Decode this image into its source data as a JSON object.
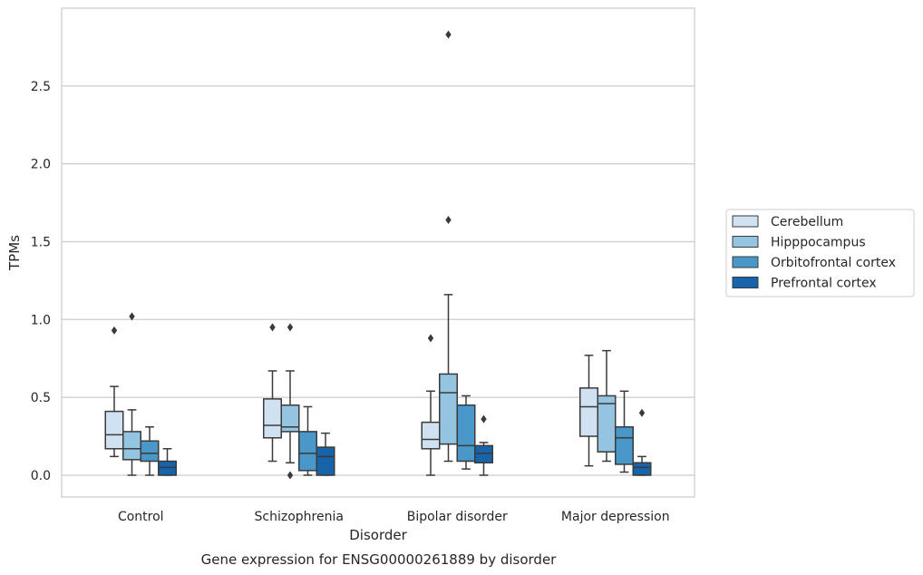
{
  "chart_data": {
    "type": "box",
    "xlabel": "Disorder",
    "ylabel": "TPMs",
    "caption": "Gene expression for ENSG00000261889 by disorder",
    "ylim": [
      -0.14,
      3.0
    ],
    "yticks": [
      0.0,
      0.5,
      1.0,
      1.5,
      2.0,
      2.5
    ],
    "ytick_labels": [
      "0.0",
      "0.5",
      "1.0",
      "1.5",
      "2.0",
      "2.5"
    ],
    "grid": "horizontal",
    "legend_position": "right",
    "categories": [
      "Control",
      "Schizophrenia",
      "Bipolar disorder",
      "Major depression"
    ],
    "series": [
      {
        "name": "Cerebellum",
        "color": "#d0e1f2",
        "boxes": [
          {
            "whislo": 0.12,
            "q1": 0.17,
            "med": 0.26,
            "q3": 0.41,
            "whishi": 0.57,
            "fliers": [
              0.93
            ]
          },
          {
            "whislo": 0.09,
            "q1": 0.24,
            "med": 0.32,
            "q3": 0.49,
            "whishi": 0.67,
            "fliers": [
              0.95
            ]
          },
          {
            "whislo": 0.0,
            "q1": 0.17,
            "med": 0.23,
            "q3": 0.34,
            "whishi": 0.54,
            "fliers": [
              0.88
            ]
          },
          {
            "whislo": 0.06,
            "q1": 0.25,
            "med": 0.44,
            "q3": 0.56,
            "whishi": 0.77,
            "fliers": []
          }
        ]
      },
      {
        "name": "Hipppocampus",
        "color": "#94c4df",
        "boxes": [
          {
            "whislo": 0.0,
            "q1": 0.1,
            "med": 0.17,
            "q3": 0.28,
            "whishi": 0.42,
            "fliers": [
              1.02
            ]
          },
          {
            "whislo": 0.08,
            "q1": 0.28,
            "med": 0.31,
            "q3": 0.45,
            "whishi": 0.67,
            "fliers": [
              0.95,
              0.0
            ]
          },
          {
            "whislo": 0.09,
            "q1": 0.2,
            "med": 0.53,
            "q3": 0.65,
            "whishi": 1.16,
            "fliers": [
              1.64,
              2.83
            ]
          },
          {
            "whislo": 0.09,
            "q1": 0.15,
            "med": 0.46,
            "q3": 0.51,
            "whishi": 0.8,
            "fliers": []
          }
        ]
      },
      {
        "name": "Orbitofrontal cortex",
        "color": "#4a98c9",
        "boxes": [
          {
            "whislo": 0.0,
            "q1": 0.09,
            "med": 0.14,
            "q3": 0.22,
            "whishi": 0.31,
            "fliers": []
          },
          {
            "whislo": 0.0,
            "q1": 0.03,
            "med": 0.14,
            "q3": 0.28,
            "whishi": 0.44,
            "fliers": []
          },
          {
            "whislo": 0.04,
            "q1": 0.09,
            "med": 0.19,
            "q3": 0.45,
            "whishi": 0.51,
            "fliers": []
          },
          {
            "whislo": 0.02,
            "q1": 0.07,
            "med": 0.24,
            "q3": 0.31,
            "whishi": 0.54,
            "fliers": []
          }
        ]
      },
      {
        "name": "Prefrontal cortex",
        "color": "#1764ab",
        "boxes": [
          {
            "whislo": 0.0,
            "q1": 0.0,
            "med": 0.05,
            "q3": 0.09,
            "whishi": 0.17,
            "fliers": []
          },
          {
            "whislo": 0.0,
            "q1": 0.0,
            "med": 0.12,
            "q3": 0.18,
            "whishi": 0.27,
            "fliers": []
          },
          {
            "whislo": 0.0,
            "q1": 0.08,
            "med": 0.14,
            "q3": 0.19,
            "whishi": 0.21,
            "fliers": [
              0.36
            ]
          },
          {
            "whislo": 0.0,
            "q1": 0.0,
            "med": 0.05,
            "q3": 0.08,
            "whishi": 0.12,
            "fliers": [
              0.4
            ]
          }
        ]
      }
    ]
  }
}
